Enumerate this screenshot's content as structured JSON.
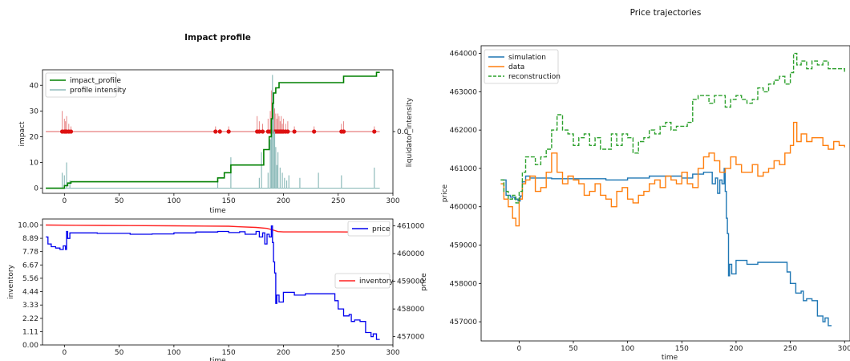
{
  "chart_data": [
    {
      "type": "line",
      "title": "Impact profile",
      "xlabel": "time",
      "ylabel": "impact",
      "ylabel_right": "liquidator_intensity",
      "xlim": [
        -20,
        300
      ],
      "ylim": [
        -2,
        46
      ],
      "x_ticks": [
        0,
        50,
        100,
        150,
        200,
        250,
        300
      ],
      "y_ticks": [
        0,
        10,
        20,
        30,
        40
      ],
      "y_right_ticks": [
        "0.0"
      ],
      "legend": "top-left",
      "legend_entries": [
        "impact_profile",
        "profile intensity"
      ],
      "series": [
        {
          "name": "impact_profile",
          "color": "#008000",
          "style": "step",
          "x": [
            -17,
            -3,
            0,
            3,
            6,
            138,
            140,
            146,
            152,
            178,
            182,
            187,
            189,
            190,
            191,
            193,
            196,
            200,
            225,
            253,
            255,
            280,
            285,
            288
          ],
          "y": [
            0,
            0,
            1,
            2,
            2.5,
            2.5,
            4,
            6,
            9,
            9,
            15,
            20,
            27,
            33,
            37,
            39,
            41,
            41,
            41,
            41,
            43.5,
            43.5,
            45,
            45
          ]
        },
        {
          "name": "profile intensity",
          "color": "#8fbcbb",
          "style": "impulse",
          "baseline": 0,
          "x": [
            -2,
            0,
            2,
            5,
            140,
            152,
            178,
            180,
            186,
            188,
            189,
            190,
            191,
            192,
            193,
            194,
            195,
            197,
            199,
            201,
            203,
            205,
            215,
            232,
            253,
            283
          ],
          "y": [
            6,
            5,
            10,
            3,
            3,
            12,
            4,
            14,
            6,
            19,
            26,
            44,
            33,
            22,
            16,
            9,
            14,
            8,
            6,
            4,
            3,
            5,
            4,
            6,
            5,
            8
          ]
        },
        {
          "name": "liquidator_intensity",
          "color": "#e06060",
          "style": "impulse_points",
          "baseline": 22,
          "x": [
            -2,
            0,
            1,
            2,
            4,
            6,
            138,
            142,
            150,
            176,
            178,
            181,
            186,
            188,
            189,
            190,
            191,
            192,
            193,
            194,
            195,
            196,
            197,
            198,
            199,
            200,
            202,
            204,
            210,
            228,
            253,
            255,
            283
          ],
          "y": [
            30,
            27,
            26,
            28,
            25,
            24,
            24,
            23,
            24,
            28,
            26,
            25,
            27,
            30,
            38,
            39,
            33,
            31,
            29,
            27,
            29,
            28,
            26,
            28,
            25,
            27,
            25,
            26,
            24,
            24,
            25,
            26,
            24
          ]
        }
      ]
    },
    {
      "type": "line",
      "xlabel": "time",
      "ylabel": "inventory",
      "ylabel_right": "price",
      "xlim": [
        -20,
        300
      ],
      "ylim": [
        0,
        10.5
      ],
      "y2lim": [
        456700,
        461250
      ],
      "x_ticks": [
        0,
        50,
        100,
        150,
        200,
        250,
        300
      ],
      "y_ticks": [
        "0.00",
        "1.11",
        "2.22",
        "3.33",
        "4.44",
        "5.56",
        "6.67",
        "7.78",
        "8.89",
        "10.00"
      ],
      "y_tick_values": [
        0,
        1.11,
        2.22,
        3.33,
        4.44,
        5.56,
        6.67,
        7.78,
        8.89,
        10.0
      ],
      "y_right_ticks": [
        "457000",
        "458000",
        "459000",
        "460000",
        "461000"
      ],
      "y_right_tick_values": [
        457000,
        458000,
        459000,
        460000,
        461000
      ],
      "legends": [
        {
          "entry": "price",
          "placement": "top-right"
        },
        {
          "entry": "inventory",
          "placement": "center-right"
        }
      ],
      "series": [
        {
          "name": "inventory",
          "color": "#ff2020",
          "axis": "left",
          "x": [
            -17,
            10,
            60,
            100,
            150,
            160,
            175,
            185,
            190,
            195,
            200,
            250,
            285
          ],
          "y": [
            10.0,
            9.98,
            9.95,
            9.93,
            9.9,
            9.85,
            9.8,
            9.72,
            9.6,
            9.45,
            9.42,
            9.42,
            9.4
          ]
        },
        {
          "name": "price",
          "color": "#0000ee",
          "axis": "right",
          "x": [
            -17,
            -15,
            -12,
            -8,
            -4,
            -1,
            1,
            2,
            3,
            5,
            8,
            30,
            50,
            60,
            80,
            100,
            120,
            140,
            150,
            160,
            165,
            175,
            178,
            181,
            183,
            185,
            187,
            189,
            190,
            191,
            192,
            193,
            194,
            196,
            200,
            210,
            220,
            230,
            245,
            247,
            250,
            255,
            260,
            262,
            265,
            270,
            275,
            280,
            282,
            285,
            288
          ],
          "y": [
            460600,
            460350,
            460250,
            460200,
            460150,
            460280,
            460150,
            460800,
            460550,
            460750,
            460750,
            460730,
            460730,
            460700,
            460710,
            460750,
            460780,
            460800,
            460760,
            460790,
            460700,
            460800,
            460600,
            460750,
            460350,
            460700,
            460600,
            461000,
            460400,
            459700,
            459300,
            458200,
            458500,
            458250,
            458600,
            458500,
            458550,
            458550,
            458550,
            458300,
            458000,
            457750,
            457800,
            457550,
            457600,
            457550,
            457150,
            457000,
            457100,
            456900,
            456900
          ]
        }
      ]
    },
    {
      "type": "line",
      "title": "Price trajectories",
      "xlabel": "time",
      "ylabel": "price",
      "xlim": [
        -35,
        305
      ],
      "ylim": [
        456500,
        464200
      ],
      "x_ticks": [
        0,
        50,
        100,
        150,
        200,
        250,
        300
      ],
      "y_ticks": [
        457000,
        458000,
        459000,
        460000,
        461000,
        462000,
        463000,
        464000
      ],
      "legend": "top-left",
      "series": [
        {
          "name": "simulation",
          "color": "#1f77b4",
          "style": "solid",
          "x": [
            -17,
            -12,
            -8,
            -4,
            -1,
            1,
            3,
            6,
            10,
            30,
            60,
            80,
            100,
            120,
            140,
            150,
            160,
            170,
            178,
            181,
            183,
            185,
            187,
            189,
            190,
            191,
            192,
            193,
            194,
            196,
            200,
            210,
            220,
            230,
            245,
            247,
            250,
            255,
            260,
            262,
            265,
            270,
            275,
            280,
            282,
            285,
            288
          ],
          "y": [
            460700,
            460300,
            460250,
            460200,
            460150,
            460280,
            460650,
            460800,
            460750,
            460730,
            460730,
            460700,
            460750,
            460800,
            460800,
            460750,
            460850,
            460900,
            460600,
            460750,
            460350,
            460700,
            460600,
            461000,
            460400,
            459700,
            459300,
            458200,
            458500,
            458250,
            458600,
            458500,
            458550,
            458550,
            458550,
            458300,
            458000,
            457750,
            457800,
            457550,
            457600,
            457550,
            457150,
            457000,
            457100,
            456900,
            456900
          ]
        },
        {
          "name": "data",
          "color": "#ff7f0e",
          "style": "solid",
          "x": [
            -17,
            -14,
            -10,
            -6,
            -3,
            0,
            3,
            6,
            10,
            15,
            20,
            25,
            30,
            35,
            40,
            45,
            50,
            55,
            60,
            65,
            70,
            75,
            80,
            85,
            90,
            95,
            100,
            105,
            110,
            115,
            120,
            125,
            130,
            135,
            140,
            145,
            150,
            155,
            160,
            165,
            170,
            175,
            180,
            185,
            190,
            195,
            200,
            205,
            210,
            215,
            220,
            225,
            230,
            235,
            240,
            245,
            250,
            253,
            256,
            260,
            265,
            270,
            275,
            280,
            285,
            290,
            295,
            300
          ],
          "y": [
            460600,
            460200,
            460000,
            459700,
            459500,
            460200,
            460600,
            460700,
            460800,
            460400,
            460500,
            460900,
            461400,
            460900,
            460600,
            460800,
            460700,
            460600,
            460300,
            460400,
            460600,
            460300,
            460200,
            460000,
            460400,
            460500,
            460200,
            460100,
            460300,
            460400,
            460600,
            460700,
            460500,
            460800,
            460700,
            460600,
            460900,
            460600,
            460500,
            461000,
            461300,
            461400,
            461200,
            460900,
            461000,
            461300,
            461100,
            460900,
            460900,
            461100,
            460800,
            460900,
            461000,
            461200,
            461100,
            461400,
            461600,
            462200,
            461700,
            461900,
            461700,
            461800,
            461800,
            461600,
            461500,
            461700,
            461600,
            461550
          ]
        },
        {
          "name": "reconstruction",
          "color": "#2ca02c",
          "style": "dashed",
          "x": [
            -17,
            -14,
            -10,
            -6,
            -3,
            0,
            3,
            6,
            10,
            15,
            20,
            25,
            30,
            35,
            40,
            45,
            50,
            55,
            60,
            65,
            70,
            75,
            80,
            85,
            90,
            95,
            100,
            105,
            110,
            115,
            120,
            125,
            130,
            135,
            140,
            145,
            150,
            155,
            160,
            165,
            170,
            175,
            180,
            185,
            190,
            195,
            200,
            205,
            210,
            215,
            220,
            225,
            230,
            235,
            240,
            245,
            250,
            253,
            256,
            260,
            265,
            270,
            275,
            280,
            285,
            290,
            295,
            300
          ],
          "y": [
            460700,
            460400,
            460200,
            460300,
            460100,
            460400,
            460900,
            461300,
            461300,
            461100,
            461300,
            461500,
            462000,
            462400,
            462000,
            461900,
            461600,
            461800,
            461900,
            461600,
            461800,
            461500,
            461500,
            461900,
            461600,
            461900,
            461800,
            461400,
            461700,
            461800,
            462000,
            461900,
            462100,
            462200,
            462000,
            462100,
            462100,
            462200,
            462800,
            462900,
            462900,
            462700,
            462900,
            462900,
            462600,
            462800,
            462900,
            462800,
            462700,
            462800,
            463100,
            463000,
            463200,
            463300,
            463400,
            463200,
            463500,
            464000,
            463700,
            463800,
            463600,
            463800,
            463700,
            463800,
            463600,
            463600,
            463600,
            463500
          ]
        }
      ]
    }
  ]
}
